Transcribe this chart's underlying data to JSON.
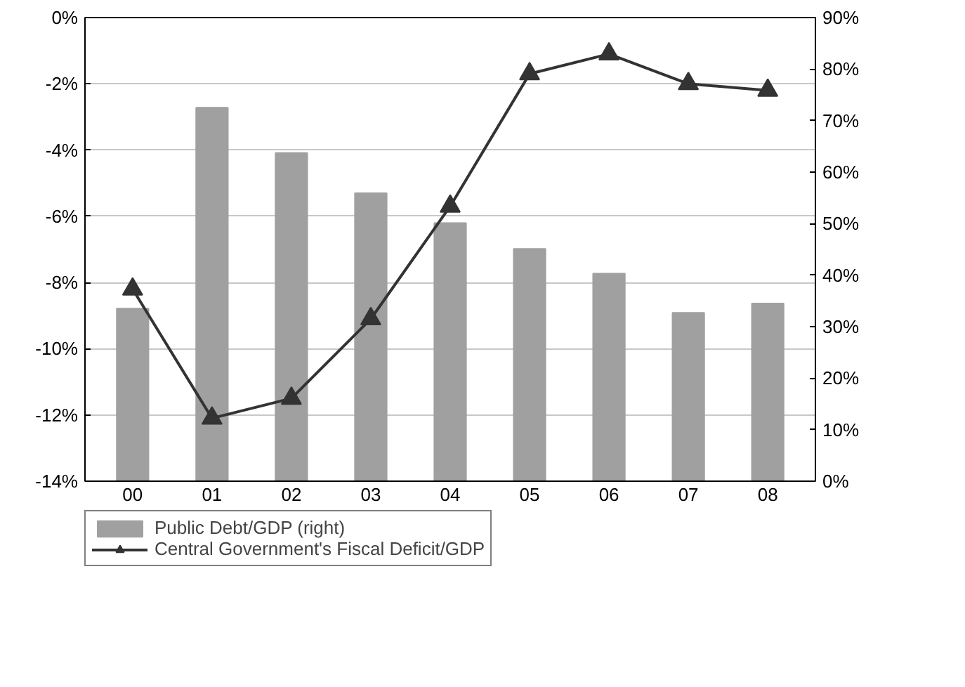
{
  "chart_data": {
    "type": "bar",
    "categories": [
      "00",
      "01",
      "02",
      "03",
      "04",
      "05",
      "06",
      "07",
      "08"
    ],
    "series": [
      {
        "name": "Public Debt/GDP (right)",
        "type": "bar",
        "axis": "y2",
        "color": "#a0a0a0",
        "values": [
          33.5,
          72.5,
          63.7,
          55.9,
          50.1,
          45.1,
          40.3,
          32.7,
          34.5
        ]
      },
      {
        "name": "Central Government's Fiscal Deficit/GDP",
        "type": "line",
        "color": "#333333",
        "marker": "triangle",
        "line_style": "solid",
        "values": [
          -8.2,
          -12.1,
          -11.5,
          -9.1,
          -5.7,
          -1.7,
          -1.1,
          -2.0,
          -2.2
        ]
      }
    ],
    "ylim": [
      -14,
      0
    ],
    "yticks": [
      {
        "value": -14,
        "label": "-14%"
      },
      {
        "value": -12,
        "label": "-12%"
      },
      {
        "value": -10,
        "label": "-10%"
      },
      {
        "value": -8,
        "label": "-8%"
      },
      {
        "value": -6,
        "label": "-6%"
      },
      {
        "value": -4,
        "label": "-4%"
      },
      {
        "value": -2,
        "label": "-2%"
      },
      {
        "value": 0,
        "label": "0%"
      }
    ],
    "y2lim": [
      0,
      90
    ],
    "y2ticks": [
      {
        "value": 0,
        "label": "0%"
      },
      {
        "value": 10,
        "label": "10%"
      },
      {
        "value": 20,
        "label": "20%"
      },
      {
        "value": 30,
        "label": "30%"
      },
      {
        "value": 40,
        "label": "40%"
      },
      {
        "value": 50,
        "label": "50%"
      },
      {
        "value": 60,
        "label": "60%"
      },
      {
        "value": 70,
        "label": "70%"
      },
      {
        "value": 80,
        "label": "80%"
      },
      {
        "value": 90,
        "label": "90%"
      }
    ],
    "grid": "y",
    "legend": "bottom"
  }
}
